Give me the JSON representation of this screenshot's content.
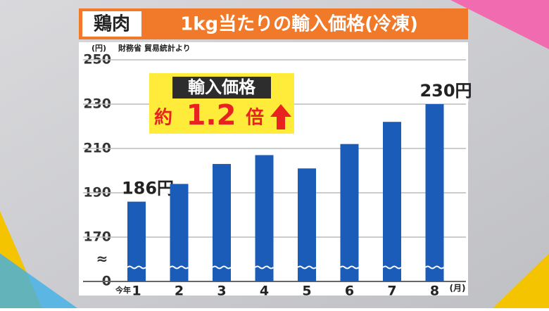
{
  "chart_data": {
    "type": "bar",
    "title": "鶏肉",
    "subtitle": "1kg当たりの輸入価格(冷凍)",
    "y_unit": "(円)",
    "source": "財務省 貿易統計より",
    "x_unit": "(月)",
    "x_prefix": "今年",
    "annotation": {
      "heading": "輸入価格",
      "prefix": "約",
      "ratio": "1.2",
      "suffix": "倍"
    },
    "categories": [
      "1",
      "2",
      "3",
      "4",
      "5",
      "6",
      "7",
      "8"
    ],
    "values": [
      186,
      194,
      203,
      207,
      201,
      212,
      222,
      230
    ],
    "value_labels": [
      "186円",
      null,
      null,
      null,
      null,
      null,
      null,
      "230円"
    ],
    "color": "#1a5cb8",
    "ylim": [
      0,
      250
    ],
    "axis_break": [
      0,
      150
    ],
    "yticks": [
      0,
      170,
      190,
      210,
      230,
      250
    ],
    "grid": true
  }
}
